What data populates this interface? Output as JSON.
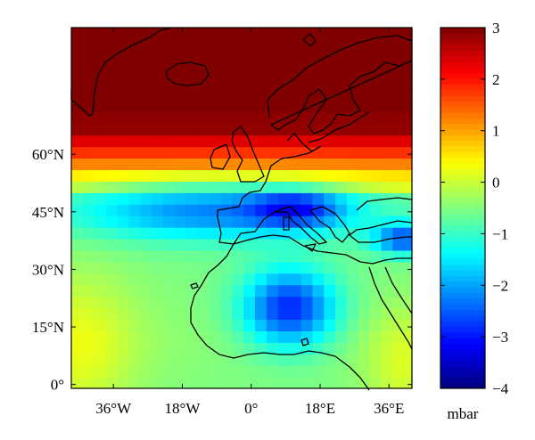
{
  "map": {
    "region": "North Atlantic, Europe and North Africa",
    "quantity": "pressure anomaly",
    "x_ticks": [
      {
        "lon": -36,
        "label": "36°W"
      },
      {
        "lon": -18,
        "label": "18°W"
      },
      {
        "lon": 0,
        "label": "0°"
      },
      {
        "lon": 18,
        "label": "18°E"
      },
      {
        "lon": 36,
        "label": "36°E"
      }
    ],
    "y_ticks": [
      {
        "lat": 0,
        "label": "0°"
      },
      {
        "lat": 15,
        "label": "15°N"
      },
      {
        "lat": 30,
        "label": "30°N"
      },
      {
        "lat": 45,
        "label": "45°N"
      },
      {
        "lat": 60,
        "label": "60°N"
      }
    ],
    "lon_range": [
      -47,
      42
    ],
    "lat_range": [
      -1,
      93
    ],
    "field_description": "Positive anomaly (+2 to +3) over the high latitudes north of 60°N; negative anomalies with minima of about -3 to -3.5 over the Mediterranean/Italy, the eastern Mediterranean near Turkey, and West Africa around 20°N, 10°E.",
    "coastline": "black"
  },
  "colorbar": {
    "min": -4,
    "max": 3,
    "ticks": [
      {
        "value": 3,
        "label": "3"
      },
      {
        "value": 2,
        "label": "2"
      },
      {
        "value": 1,
        "label": "1"
      },
      {
        "value": 0,
        "label": "0"
      },
      {
        "value": -1,
        "label": "−1"
      },
      {
        "value": -2,
        "label": "−2"
      },
      {
        "value": -3,
        "label": "−3"
      },
      {
        "value": -4,
        "label": "−4"
      }
    ],
    "unit_label": "mbar",
    "colormap": "jet"
  }
}
